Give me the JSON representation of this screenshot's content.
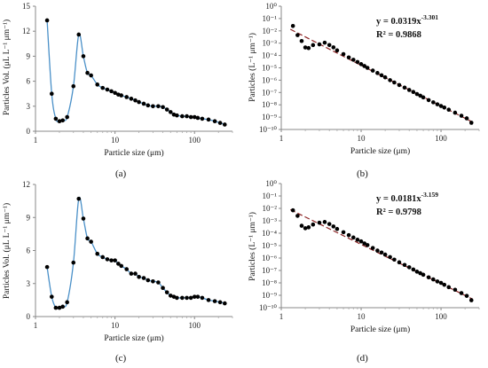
{
  "chart_data": [
    {
      "id": "a",
      "caption": "(a)",
      "type": "line",
      "xscale": "log",
      "xlim": [
        1,
        300
      ],
      "ylim": [
        0,
        15
      ],
      "yticks": [
        0,
        3,
        6,
        9,
        12,
        15
      ],
      "xticks": [
        {
          "v": 1,
          "label": "1"
        },
        {
          "v": 10,
          "label": "10"
        },
        {
          "v": 100,
          "label": "100"
        }
      ],
      "xlabel": "Particle size (μm)",
      "ylabel": "Particles Vol. (μL L⁻¹ μm⁻¹)",
      "x": [
        1.4,
        1.6,
        1.8,
        2.0,
        2.2,
        2.5,
        3.0,
        3.5,
        4.0,
        4.5,
        5.0,
        6.0,
        7.0,
        8.0,
        9.0,
        10.0,
        11.0,
        12.0,
        14.0,
        16.0,
        18.0,
        20.0,
        23.0,
        26.0,
        30.0,
        35.0,
        40.0,
        45.0,
        50.0,
        55.0,
        60.0,
        70.0,
        80.0,
        90.0,
        100.0,
        110.0,
        125.0,
        150.0,
        180.0,
        210.0,
        240.0
      ],
      "values": [
        13.3,
        4.5,
        1.5,
        1.2,
        1.3,
        1.7,
        5.4,
        11.6,
        9.0,
        7.0,
        6.7,
        5.6,
        5.2,
        5.0,
        4.8,
        4.6,
        4.4,
        4.3,
        4.1,
        3.9,
        3.7,
        3.5,
        3.3,
        3.1,
        3.0,
        3.0,
        2.9,
        2.6,
        2.3,
        2.0,
        1.9,
        1.8,
        1.8,
        1.7,
        1.7,
        1.6,
        1.5,
        1.4,
        1.2,
        1.0,
        0.8
      ]
    },
    {
      "id": "b",
      "caption": "(b)",
      "type": "scatter",
      "xscale": "log",
      "yscale": "log",
      "xlim": [
        1,
        300
      ],
      "ylim_exp": [
        -10,
        0
      ],
      "xticks": [
        {
          "v": 1,
          "label": "1"
        },
        {
          "v": 10,
          "label": "10"
        },
        {
          "v": 100,
          "label": "100"
        }
      ],
      "xlabel": "Particle size (μm)",
      "ylabel": "Particles (L⁻¹ μm⁻¹)",
      "annotation": {
        "equation_base": "y = 0.0319x",
        "equation_exp": "-3.301",
        "r2": "R² = 0.9868"
      },
      "fit": {
        "a": 0.0319,
        "b": -3.301
      },
      "x": [
        1.4,
        1.6,
        1.8,
        2.0,
        2.2,
        2.5,
        3.0,
        3.5,
        4.0,
        4.5,
        5.0,
        6.0,
        7.0,
        8.0,
        9.0,
        10.0,
        11.0,
        12.0,
        14.0,
        16.0,
        18.0,
        20.0,
        23.0,
        26.0,
        30.0,
        35.0,
        40.0,
        45.0,
        50.0,
        55.0,
        60.0,
        70.0,
        80.0,
        90.0,
        100.0,
        110.0,
        125.0,
        150.0,
        180.0,
        210.0,
        240.0
      ],
      "values": [
        0.025,
        0.0045,
        0.0015,
        0.00045,
        0.0004,
        0.0007,
        0.0008,
        0.0011,
        0.00071,
        0.00046,
        0.00026,
        0.00013,
        7e-05,
        4.5e-05,
        3e-05,
        2e-05,
        1.4e-05,
        1e-05,
        6e-06,
        3.8e-06,
        2.5e-06,
        1.7e-06,
        1e-06,
        6.5e-07,
        4e-07,
        2.5e-07,
        1.6e-07,
        1.1e-07,
        7.5e-08,
        5.5e-08,
        4e-08,
        2.4e-08,
        1.6e-08,
        1.1e-08,
        8e-09,
        6e-09,
        4e-09,
        2.3e-09,
        1.3e-09,
        8e-10,
        3.5e-10
      ]
    },
    {
      "id": "c",
      "caption": "(c)",
      "type": "line",
      "xscale": "log",
      "xlim": [
        1,
        300
      ],
      "ylim": [
        0,
        12
      ],
      "yticks": [
        0,
        3,
        6,
        9,
        12
      ],
      "xticks": [
        {
          "v": 1,
          "label": "1"
        },
        {
          "v": 10,
          "label": "10"
        },
        {
          "v": 100,
          "label": "100"
        }
      ],
      "xlabel": "Particle size (μm)",
      "ylabel": "Particles Vol. (μL L⁻¹ μm⁻¹)",
      "x": [
        1.4,
        1.6,
        1.8,
        2.0,
        2.2,
        2.5,
        3.0,
        3.5,
        4.0,
        4.5,
        5.0,
        6.0,
        7.0,
        8.0,
        9.0,
        10.0,
        11.0,
        12.0,
        14.0,
        16.0,
        18.0,
        20.0,
        23.0,
        26.0,
        30.0,
        35.0,
        40.0,
        45.0,
        50.0,
        55.0,
        60.0,
        70.0,
        80.0,
        90.0,
        100.0,
        110.0,
        125.0,
        150.0,
        180.0,
        210.0,
        240.0
      ],
      "values": [
        4.5,
        1.8,
        0.8,
        0.8,
        0.9,
        1.3,
        4.9,
        10.7,
        8.9,
        7.1,
        6.8,
        5.7,
        5.4,
        5.2,
        5.1,
        5.1,
        4.8,
        4.6,
        4.3,
        3.9,
        3.9,
        3.6,
        3.5,
        3.3,
        3.2,
        3.1,
        2.6,
        2.2,
        1.9,
        1.8,
        1.7,
        1.7,
        1.7,
        1.7,
        1.8,
        1.8,
        1.7,
        1.5,
        1.4,
        1.3,
        1.2
      ]
    },
    {
      "id": "d",
      "caption": "(d)",
      "type": "scatter",
      "xscale": "log",
      "yscale": "log",
      "xlim": [
        1,
        300
      ],
      "ylim_exp": [
        -10,
        0
      ],
      "xticks": [
        {
          "v": 1,
          "label": "1"
        },
        {
          "v": 10,
          "label": "10"
        },
        {
          "v": 100,
          "label": "100"
        }
      ],
      "xlabel": "Particle size (μm)",
      "ylabel": "Particles (L⁻¹ μm⁻¹)",
      "annotation": {
        "equation_base": "y = 0.0181x",
        "equation_exp": "-3.159",
        "r2": "R² = 0.9798"
      },
      "fit": {
        "a": 0.0181,
        "b": -3.159
      },
      "x": [
        1.4,
        1.6,
        1.8,
        2.0,
        2.2,
        2.5,
        3.0,
        3.5,
        4.0,
        4.5,
        5.0,
        6.0,
        7.0,
        8.0,
        9.0,
        10.0,
        11.0,
        12.0,
        14.0,
        16.0,
        18.0,
        20.0,
        23.0,
        26.0,
        30.0,
        35.0,
        40.0,
        45.0,
        50.0,
        55.0,
        60.0,
        70.0,
        80.0,
        90.0,
        100.0,
        110.0,
        125.0,
        150.0,
        180.0,
        210.0,
        240.0
      ],
      "values": [
        0.007,
        0.0025,
        0.0004,
        0.00025,
        0.0003,
        0.0005,
        0.0007,
        0.0008,
        0.00055,
        0.00035,
        0.00022,
        0.00012,
        7e-05,
        4.5e-05,
        3e-05,
        2.2e-05,
        1.5e-05,
        1.1e-05,
        6.5e-06,
        4e-06,
        2.8e-06,
        1.9e-06,
        1.2e-06,
        7.5e-07,
        4.5e-07,
        2.8e-07,
        1.8e-07,
        1.2e-07,
        8e-08,
        6e-08,
        4.5e-08,
        2.8e-08,
        1.9e-08,
        1.3e-08,
        1e-08,
        7e-09,
        4.5e-09,
        2.8e-09,
        1.5e-09,
        9e-10,
        4e-10
      ]
    }
  ]
}
